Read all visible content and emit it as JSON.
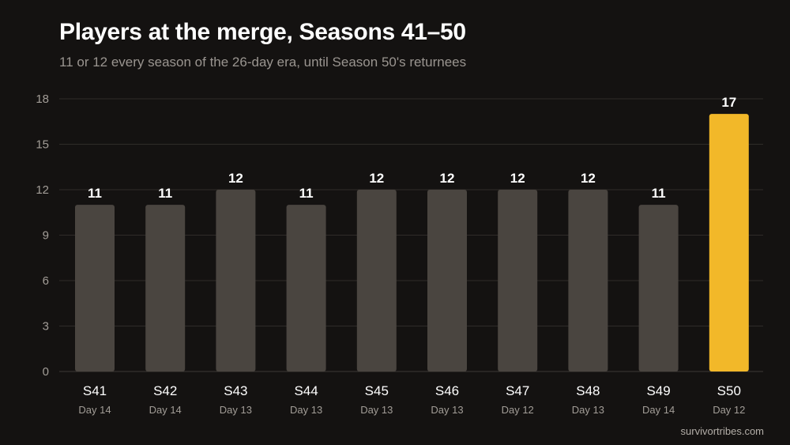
{
  "chart_data": {
    "type": "bar",
    "title": "Players at the merge, Seasons 41–50",
    "subtitle": "11 or 12 every season of the 26-day era, until Season 50's returnees",
    "categories": [
      "S41",
      "S42",
      "S43",
      "S44",
      "S45",
      "S46",
      "S47",
      "S48",
      "S49",
      "S50"
    ],
    "category_sublabels": [
      "Day 14",
      "Day 14",
      "Day 13",
      "Day 13",
      "Day 13",
      "Day 13",
      "Day 12",
      "Day 13",
      "Day 14",
      "Day 12"
    ],
    "values": [
      11,
      11,
      12,
      11,
      12,
      12,
      12,
      12,
      11,
      17
    ],
    "highlight_index": 9,
    "ylim": [
      0,
      18
    ],
    "yticks": [
      0,
      3,
      6,
      9,
      12,
      15,
      18
    ],
    "grid": true,
    "data_labels": true,
    "colors": {
      "bar": "#4a4540",
      "highlight": "#f2b829",
      "background": "#141211"
    }
  },
  "credit": "survivortribes.com"
}
